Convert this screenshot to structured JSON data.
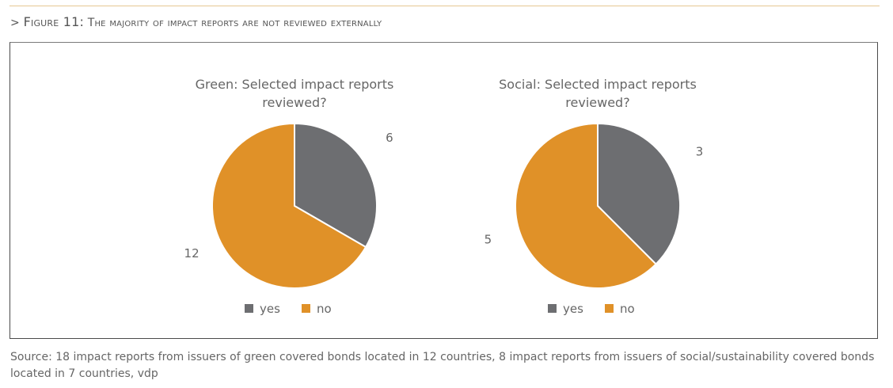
{
  "figure": {
    "prefix": "> ",
    "label": "Figure 11:",
    "title": "The majority of impact reports are not reviewed externally"
  },
  "source": "Source: 18 impact reports from issuers of green covered bonds located in 12 countries, 8 impact reports from issuers of social/sustainability covered bonds located in 7 countries, vdp",
  "colors": {
    "yes": "#6d6e71",
    "no": "#e09128",
    "text": "#666666"
  },
  "chart_data": [
    {
      "type": "pie",
      "title": [
        "Green: Selected impact reports",
        "reviewed?"
      ],
      "categories": [
        "yes",
        "no"
      ],
      "values": [
        6,
        12
      ],
      "data_labels": [
        "6",
        "12"
      ],
      "start_angle_deg": 0,
      "direction": "clockwise",
      "legend": {
        "position": "bottom",
        "entries": [
          "yes",
          "no"
        ]
      }
    },
    {
      "type": "pie",
      "title": [
        "Social: Selected impact reports",
        "reviewed?"
      ],
      "categories": [
        "yes",
        "no"
      ],
      "values": [
        3,
        5
      ],
      "data_labels": [
        "3",
        "5"
      ],
      "start_angle_deg": 0,
      "direction": "clockwise",
      "legend": {
        "position": "bottom",
        "entries": [
          "yes",
          "no"
        ]
      }
    }
  ]
}
